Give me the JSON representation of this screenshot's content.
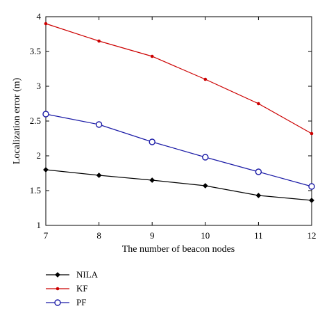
{
  "chart_data": {
    "type": "line",
    "title": "",
    "xlabel": "The number of beacon nodes",
    "ylabel": "Localization error (m)",
    "x": [
      7,
      8,
      9,
      10,
      11,
      12
    ],
    "xlim": [
      7,
      12
    ],
    "ylim": [
      1,
      4
    ],
    "xticks": [
      "7",
      "8",
      "9",
      "10",
      "11",
      "12"
    ],
    "yticks": [
      "1",
      "1.5",
      "2",
      "2.5",
      "3",
      "3.5",
      "4"
    ],
    "grid": false,
    "legend_placement": "bottom",
    "series": [
      {
        "name": "NILA",
        "marker": "diamond",
        "color": "#000000",
        "values": [
          1.8,
          1.72,
          1.65,
          1.57,
          1.43,
          1.36
        ]
      },
      {
        "name": "KF",
        "marker": "dot",
        "color": "#cc0000",
        "values": [
          3.9,
          3.65,
          3.43,
          3.1,
          2.75,
          2.32
        ]
      },
      {
        "name": "PF",
        "marker": "circle",
        "color": "#1a1aa6",
        "values": [
          2.6,
          2.45,
          2.2,
          1.98,
          1.77,
          1.56
        ]
      }
    ]
  }
}
